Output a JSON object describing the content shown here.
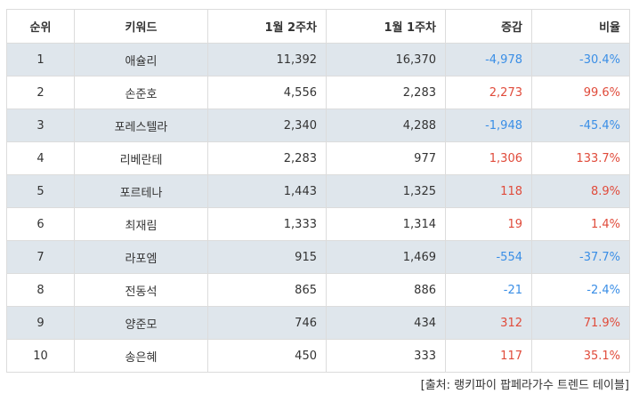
{
  "table": {
    "headers": {
      "rank": "순위",
      "keyword": "키워드",
      "week2": "1월 2주차",
      "week1": "1월 1주차",
      "change": "증감",
      "ratio": "비율"
    },
    "rows": [
      {
        "rank": "1",
        "keyword": "애슐리",
        "week2": "11,392",
        "week1": "16,370",
        "change": "-4,978",
        "ratio": "-30.4%",
        "trend": "negative"
      },
      {
        "rank": "2",
        "keyword": "손준호",
        "week2": "4,556",
        "week1": "2,283",
        "change": "2,273",
        "ratio": "99.6%",
        "trend": "positive"
      },
      {
        "rank": "3",
        "keyword": "포레스텔라",
        "week2": "2,340",
        "week1": "4,288",
        "change": "-1,948",
        "ratio": "-45.4%",
        "trend": "negative"
      },
      {
        "rank": "4",
        "keyword": "리베란테",
        "week2": "2,283",
        "week1": "977",
        "change": "1,306",
        "ratio": "133.7%",
        "trend": "positive"
      },
      {
        "rank": "5",
        "keyword": "포르테나",
        "week2": "1,443",
        "week1": "1,325",
        "change": "118",
        "ratio": "8.9%",
        "trend": "positive"
      },
      {
        "rank": "6",
        "keyword": "최재림",
        "week2": "1,333",
        "week1": "1,314",
        "change": "19",
        "ratio": "1.4%",
        "trend": "positive"
      },
      {
        "rank": "7",
        "keyword": "라포엠",
        "week2": "915",
        "week1": "1,469",
        "change": "-554",
        "ratio": "-37.7%",
        "trend": "negative"
      },
      {
        "rank": "8",
        "keyword": "전동석",
        "week2": "865",
        "week1": "886",
        "change": "-21",
        "ratio": "-2.4%",
        "trend": "negative"
      },
      {
        "rank": "9",
        "keyword": "양준모",
        "week2": "746",
        "week1": "434",
        "change": "312",
        "ratio": "71.9%",
        "trend": "positive"
      },
      {
        "rank": "10",
        "keyword": "송은혜",
        "week2": "450",
        "week1": "333",
        "change": "117",
        "ratio": "35.1%",
        "trend": "positive"
      }
    ]
  },
  "source": "[출처: 랭키파이 팝페라가수 트렌드 테이블]",
  "colors": {
    "positive": "#e04b3b",
    "negative": "#3a8ee6",
    "shade": "#dfe6ec",
    "border": "#dcdcdc"
  }
}
